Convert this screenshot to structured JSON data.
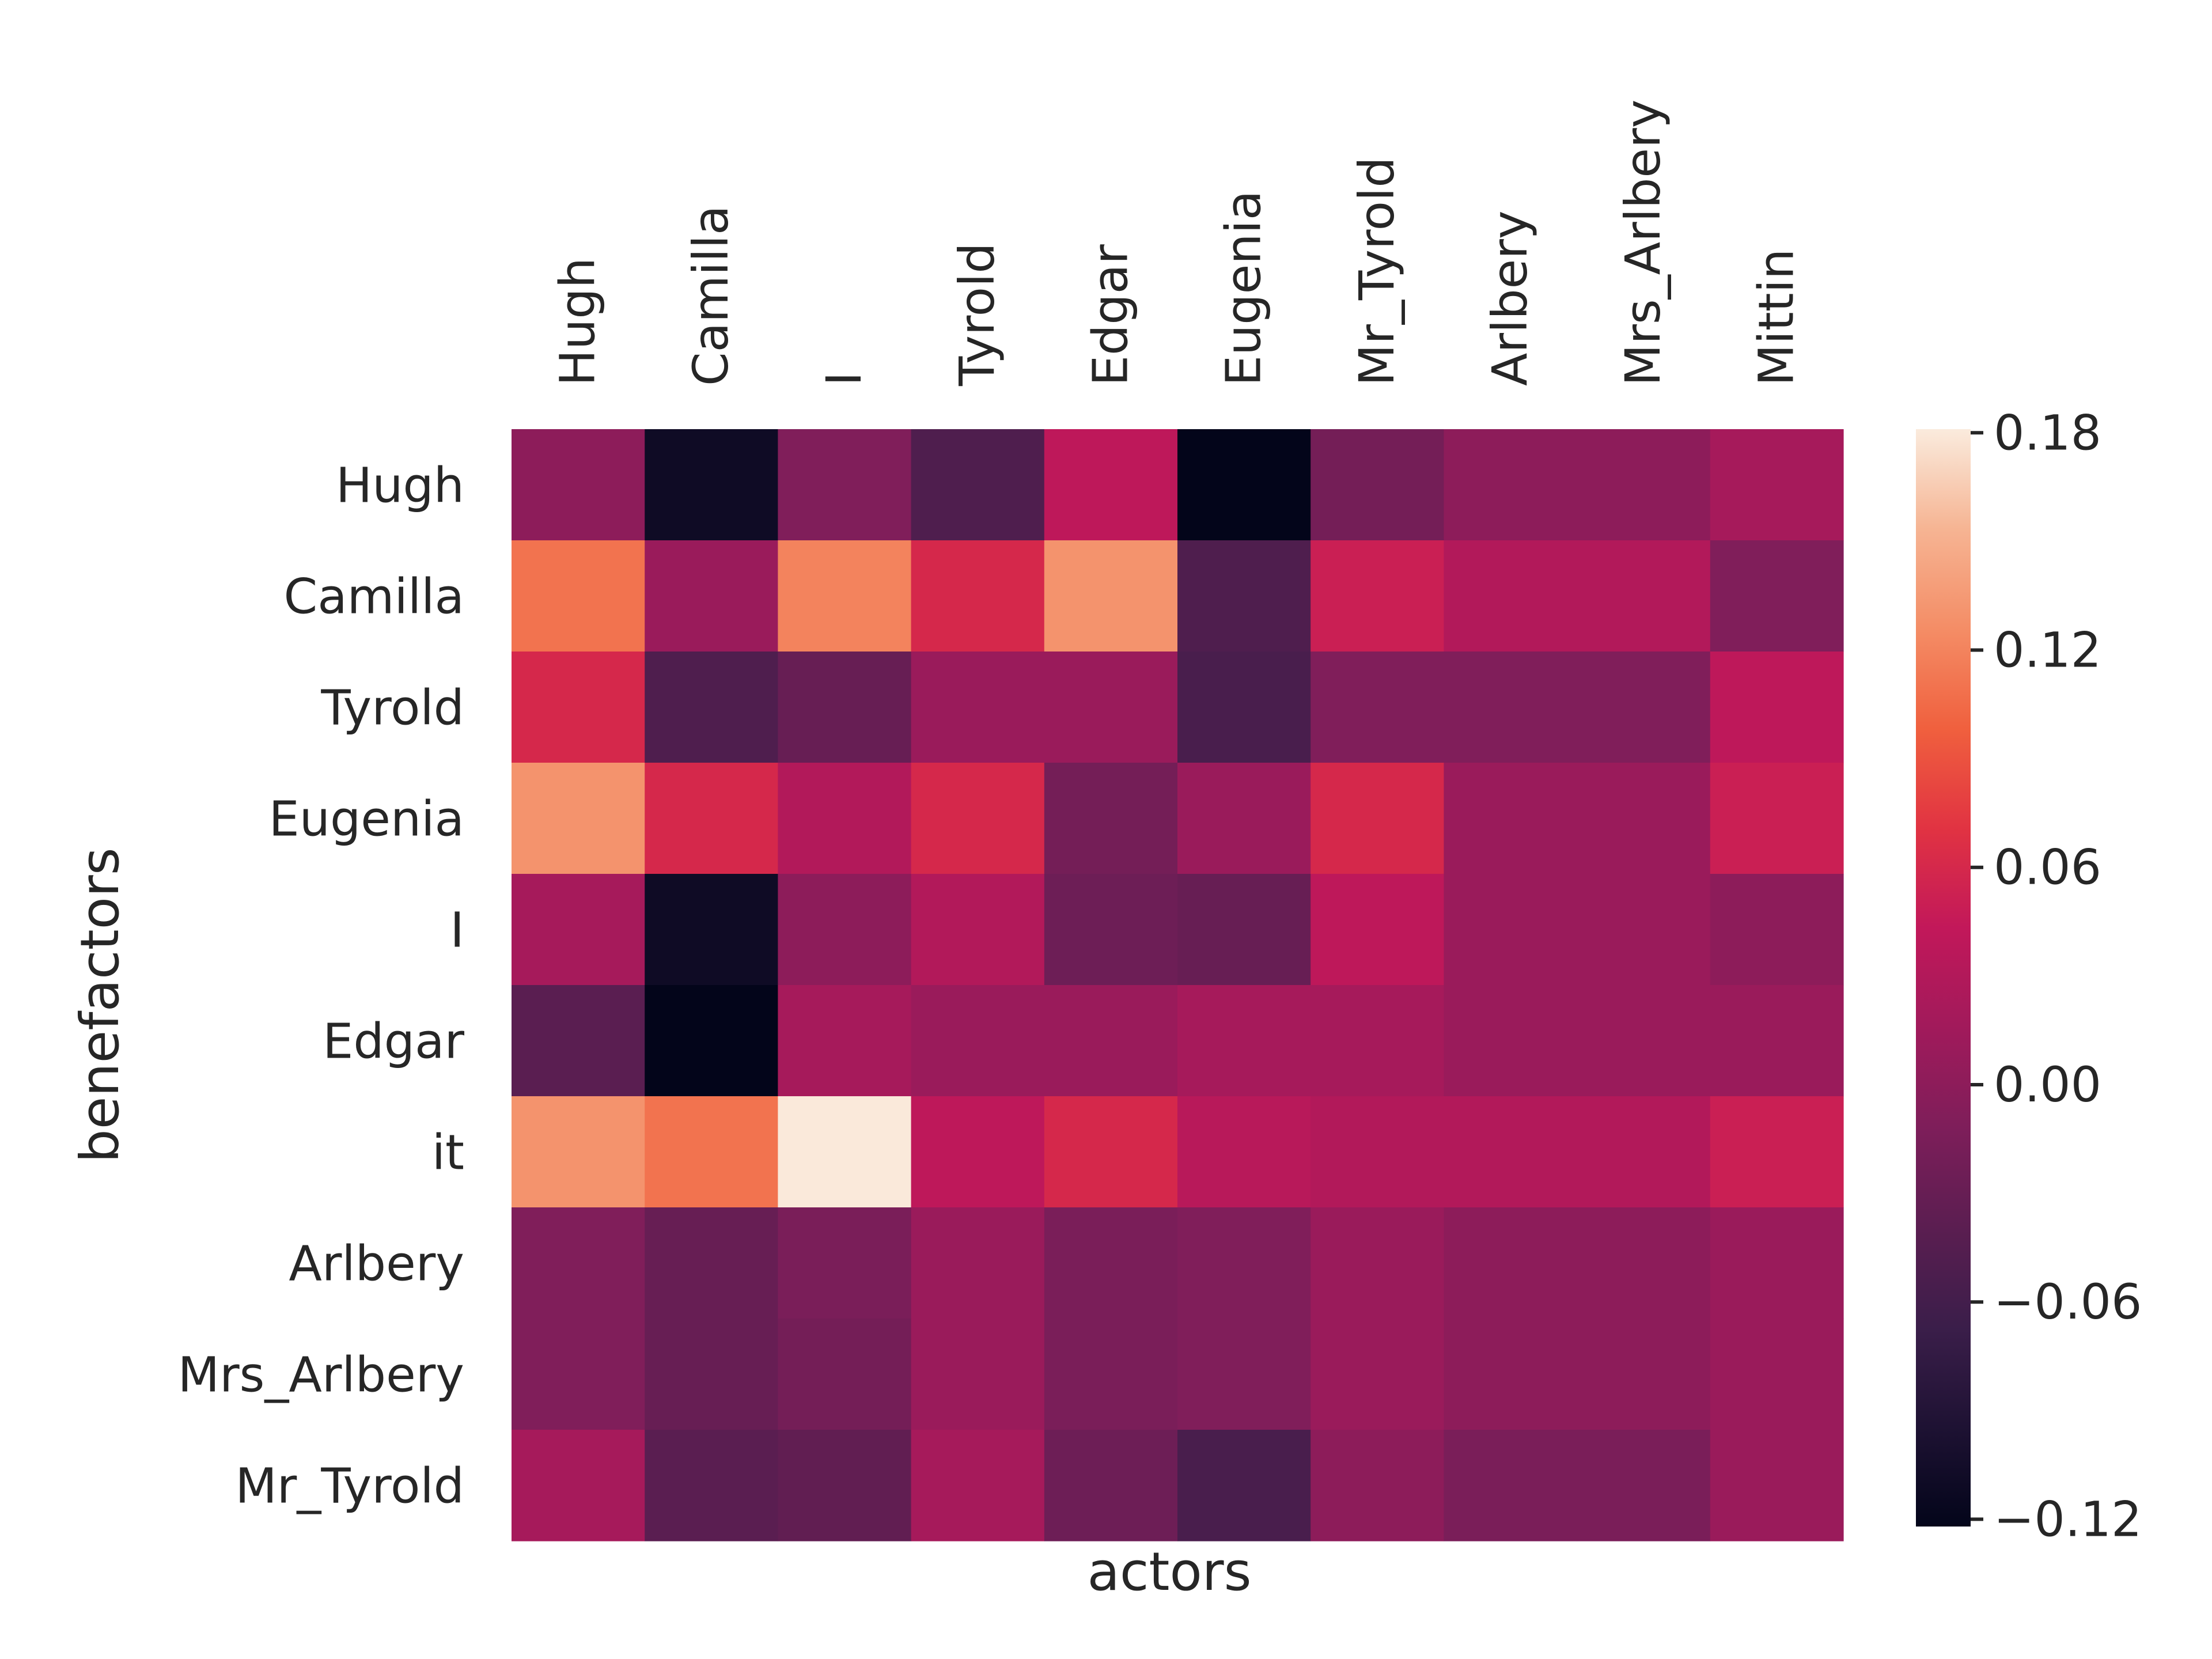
{
  "chart_data": {
    "type": "heatmap",
    "xlabel": "actors",
    "ylabel": "benefactors",
    "x_ticks_position": "top",
    "columns": [
      "Hugh",
      "Camilla",
      "I",
      "Tyrold",
      "Edgar",
      "Eugenia",
      "Mr_Tyrold",
      "Arlbery",
      "Mrs_Arlbery",
      "Mittin"
    ],
    "rows": [
      "Hugh",
      "Camilla",
      "Tyrold",
      "Eugenia",
      "I",
      "Edgar",
      "it",
      "Arlbery",
      "Mrs_Arlbery",
      "Mr_Tyrold"
    ],
    "values": [
      [
        0.0,
        -0.11,
        -0.01,
        -0.05,
        0.04,
        -0.125,
        -0.02,
        0.0,
        0.0,
        0.02
      ],
      [
        0.11,
        0.01,
        0.12,
        0.06,
        0.13,
        -0.05,
        0.05,
        0.03,
        0.03,
        -0.01
      ],
      [
        0.06,
        -0.05,
        -0.03,
        0.01,
        0.01,
        -0.055,
        -0.01,
        -0.01,
        -0.01,
        0.04
      ],
      [
        0.13,
        0.06,
        0.03,
        0.06,
        -0.02,
        0.01,
        0.06,
        0.01,
        0.01,
        0.05
      ],
      [
        0.02,
        -0.11,
        0.0,
        0.03,
        -0.025,
        -0.03,
        0.04,
        0.01,
        0.01,
        0.0
      ],
      [
        -0.04,
        -0.125,
        0.02,
        0.01,
        0.01,
        0.02,
        0.02,
        0.01,
        0.01,
        0.01
      ],
      [
        0.13,
        0.11,
        0.18,
        0.04,
        0.06,
        0.035,
        0.03,
        0.03,
        0.03,
        0.05
      ],
      [
        -0.01,
        -0.03,
        -0.015,
        0.01,
        -0.015,
        -0.01,
        0.01,
        0.0,
        0.0,
        0.01
      ],
      [
        -0.01,
        -0.03,
        -0.02,
        0.01,
        -0.015,
        -0.01,
        0.01,
        0.0,
        0.0,
        0.01
      ],
      [
        0.02,
        -0.04,
        -0.035,
        0.02,
        -0.025,
        -0.055,
        0.0,
        -0.015,
        -0.015,
        0.01
      ]
    ],
    "vmin": -0.122,
    "vmax": 0.181,
    "colorbar": {
      "ticks": [
        0.18,
        0.12,
        0.06,
        0.0,
        -0.06,
        -0.12
      ],
      "tick_labels": [
        "0.18",
        "0.12",
        "0.06",
        "0.00",
        "−0.06",
        "−0.12"
      ]
    },
    "colormap": "rocket",
    "colormap_stops": [
      "#03051a",
      "#1e1233",
      "#3b1e4a",
      "#5b1e51",
      "#7e1e5a",
      "#a11a5b",
      "#c2185a",
      "#e13342",
      "#f0603e",
      "#f48d66",
      "#f6b493",
      "#faebdd"
    ]
  }
}
